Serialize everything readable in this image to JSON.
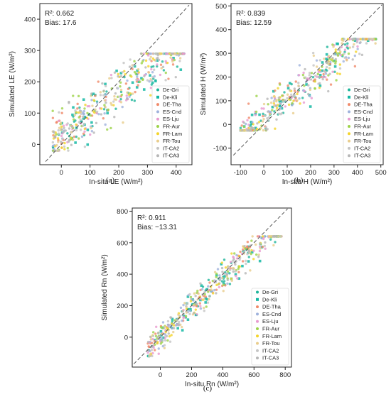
{
  "chart_data": [
    {
      "type": "scatter",
      "panel": "a",
      "caption": "(a)",
      "xlabel": "In-situ LE (W/m²)",
      "ylabel": "Simulated LE (W/m²)",
      "xlim": [
        -75,
        455
      ],
      "ylim": [
        -65,
        450
      ],
      "xticks": [
        0,
        100,
        200,
        300,
        400
      ],
      "yticks": [
        0,
        100,
        200,
        300,
        400
      ],
      "identity_line": true,
      "annotation_lines": [
        "R²: 0.662",
        "Bias: 17.6"
      ],
      "legend_position": "lower-right",
      "stats": {
        "r2": 0.662,
        "bias": 17.6
      },
      "point_cloud": {
        "x_range": [
          -30,
          430
        ],
        "y_range": [
          -20,
          290
        ],
        "approx_slope": 0.72,
        "approx_intercept": 25,
        "spread": 38,
        "count_per_site": 45
      }
    },
    {
      "type": "scatter",
      "panel": "b",
      "caption": "(b)",
      "xlabel": "In-situ H (W/m²)",
      "ylabel": "Simulated H (W/m²)",
      "xlim": [
        -140,
        510
      ],
      "ylim": [
        -170,
        510
      ],
      "xticks": [
        -100,
        0,
        100,
        200,
        300,
        400,
        500
      ],
      "yticks": [
        -100,
        0,
        100,
        200,
        300,
        400,
        500
      ],
      "identity_line": true,
      "annotation_lines": [
        "R²: 0.839",
        "Bias: 12.59"
      ],
      "legend_position": "lower-right",
      "stats": {
        "r2": 0.839,
        "bias": 12.59
      },
      "point_cloud": {
        "x_range": [
          -100,
          480
        ],
        "y_range": [
          -25,
          360
        ],
        "approx_slope": 0.85,
        "approx_intercept": 20,
        "spread": 40,
        "count_per_site": 45
      }
    },
    {
      "type": "scatter",
      "panel": "c",
      "caption": "(c)",
      "xlabel": "In-situ Rn (W/m²)",
      "ylabel": "Simulated Rn (W/m²)",
      "xlim": [
        -180,
        840
      ],
      "ylim": [
        -190,
        820
      ],
      "xticks": [
        0,
        200,
        400,
        600,
        800
      ],
      "yticks": [
        0,
        200,
        400,
        600,
        800
      ],
      "identity_line": true,
      "annotation_lines": [
        "R²: 0.911",
        "Bias: −13.31"
      ],
      "legend_position": "lower-right",
      "stats": {
        "r2": 0.911,
        "bias": -13.31
      },
      "point_cloud": {
        "x_range": [
          -80,
          780
        ],
        "y_range": [
          -120,
          640
        ],
        "approx_slope": 0.95,
        "approx_intercept": -5,
        "spread": 45,
        "count_per_site": 45
      }
    }
  ],
  "legend": [
    {
      "name": "De-Gri",
      "color": "#1fb59b",
      "marker": "circle"
    },
    {
      "name": "De-Kli",
      "color": "#16b8a5",
      "marker": "square"
    },
    {
      "name": "DE-Tha",
      "color": "#f08a6a",
      "marker": "circle"
    },
    {
      "name": "ES-Cnd",
      "color": "#9fb2dc",
      "marker": "circle"
    },
    {
      "name": "ES-Lju",
      "color": "#e89ad0",
      "marker": "circle"
    },
    {
      "name": "FR-Aur",
      "color": "#9dd34a",
      "marker": "circle"
    },
    {
      "name": "FR-Lam",
      "color": "#f4d42c",
      "marker": "circle"
    },
    {
      "name": "FR-Tou",
      "color": "#e9cd8c",
      "marker": "circle"
    },
    {
      "name": "IT-CA2",
      "color": "#c4c4c4",
      "marker": "circle"
    },
    {
      "name": "IT-CA3",
      "color": "#b7b7b7",
      "marker": "circle"
    }
  ]
}
